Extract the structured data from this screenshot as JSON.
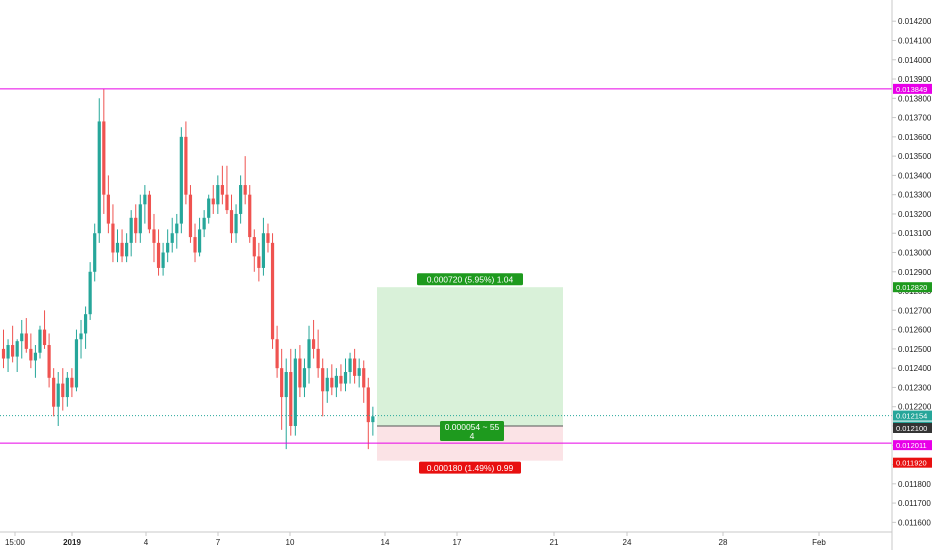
{
  "chart_data": {
    "type": "candlestick",
    "title": "",
    "xlabel": "",
    "ylabel": "",
    "ylim": [
      0.01155,
      0.01431
    ],
    "x_ticks": [
      "15:00",
      "2019",
      "4",
      "7",
      "10",
      "14",
      "17",
      "21",
      "24",
      "28",
      "Feb"
    ],
    "y_ticks": [
      "0.011600",
      "0.011700",
      "0.011800",
      "0.011900",
      "0.012000",
      "0.012100",
      "0.012200",
      "0.012300",
      "0.012400",
      "0.012500",
      "0.012600",
      "0.012700",
      "0.012800",
      "0.012900",
      "0.013000",
      "0.013100",
      "0.013200",
      "0.013300",
      "0.013400",
      "0.013500",
      "0.013600",
      "0.013700",
      "0.013800",
      "0.013900",
      "0.014000",
      "0.014100",
      "0.014200"
    ],
    "candles": [
      {
        "o": 0.0125,
        "h": 0.0126,
        "l": 0.0124,
        "c": 0.01245
      },
      {
        "o": 0.01245,
        "h": 0.01255,
        "l": 0.01238,
        "c": 0.01252
      },
      {
        "o": 0.01252,
        "h": 0.01262,
        "l": 0.01243,
        "c": 0.01246
      },
      {
        "o": 0.01246,
        "h": 0.01255,
        "l": 0.01238,
        "c": 0.01254
      },
      {
        "o": 0.01254,
        "h": 0.01265,
        "l": 0.01245,
        "c": 0.01258
      },
      {
        "o": 0.01258,
        "h": 0.01266,
        "l": 0.01248,
        "c": 0.0125
      },
      {
        "o": 0.0125,
        "h": 0.01258,
        "l": 0.0124,
        "c": 0.01244
      },
      {
        "o": 0.01244,
        "h": 0.01252,
        "l": 0.01235,
        "c": 0.01248
      },
      {
        "o": 0.01248,
        "h": 0.01262,
        "l": 0.01245,
        "c": 0.0126
      },
      {
        "o": 0.0126,
        "h": 0.0127,
        "l": 0.0125,
        "c": 0.01252
      },
      {
        "o": 0.01252,
        "h": 0.01258,
        "l": 0.0123,
        "c": 0.01235
      },
      {
        "o": 0.01235,
        "h": 0.0124,
        "l": 0.01215,
        "c": 0.0122
      },
      {
        "o": 0.0122,
        "h": 0.01238,
        "l": 0.0121,
        "c": 0.01232
      },
      {
        "o": 0.01232,
        "h": 0.0124,
        "l": 0.01218,
        "c": 0.01225
      },
      {
        "o": 0.01225,
        "h": 0.01238,
        "l": 0.0122,
        "c": 0.01235
      },
      {
        "o": 0.01235,
        "h": 0.0124,
        "l": 0.01225,
        "c": 0.0123
      },
      {
        "o": 0.0123,
        "h": 0.0126,
        "l": 0.01228,
        "c": 0.01255
      },
      {
        "o": 0.01255,
        "h": 0.01265,
        "l": 0.01245,
        "c": 0.01258
      },
      {
        "o": 0.01258,
        "h": 0.01272,
        "l": 0.0125,
        "c": 0.01268
      },
      {
        "o": 0.01268,
        "h": 0.01295,
        "l": 0.01265,
        "c": 0.0129
      },
      {
        "o": 0.0129,
        "h": 0.01315,
        "l": 0.01285,
        "c": 0.0131
      },
      {
        "o": 0.0131,
        "h": 0.0138,
        "l": 0.01305,
        "c": 0.01368
      },
      {
        "o": 0.01368,
        "h": 0.01385,
        "l": 0.0132,
        "c": 0.0133
      },
      {
        "o": 0.0133,
        "h": 0.0134,
        "l": 0.0131,
        "c": 0.01315
      },
      {
        "o": 0.01315,
        "h": 0.01325,
        "l": 0.01295,
        "c": 0.013
      },
      {
        "o": 0.013,
        "h": 0.01312,
        "l": 0.01295,
        "c": 0.01305
      },
      {
        "o": 0.01305,
        "h": 0.01312,
        "l": 0.01295,
        "c": 0.01298
      },
      {
        "o": 0.01298,
        "h": 0.0131,
        "l": 0.01295,
        "c": 0.01305
      },
      {
        "o": 0.01305,
        "h": 0.01322,
        "l": 0.01298,
        "c": 0.01318
      },
      {
        "o": 0.01318,
        "h": 0.01325,
        "l": 0.01305,
        "c": 0.0131
      },
      {
        "o": 0.0131,
        "h": 0.0133,
        "l": 0.01305,
        "c": 0.01325
      },
      {
        "o": 0.01325,
        "h": 0.01335,
        "l": 0.01315,
        "c": 0.0133
      },
      {
        "o": 0.0133,
        "h": 0.01332,
        "l": 0.0131,
        "c": 0.01312
      },
      {
        "o": 0.01312,
        "h": 0.0132,
        "l": 0.01295,
        "c": 0.01305
      },
      {
        "o": 0.01305,
        "h": 0.01312,
        "l": 0.01288,
        "c": 0.01292
      },
      {
        "o": 0.01292,
        "h": 0.01305,
        "l": 0.01288,
        "c": 0.013
      },
      {
        "o": 0.013,
        "h": 0.01312,
        "l": 0.01295,
        "c": 0.01305
      },
      {
        "o": 0.01305,
        "h": 0.01318,
        "l": 0.013,
        "c": 0.0131
      },
      {
        "o": 0.0131,
        "h": 0.0132,
        "l": 0.01302,
        "c": 0.01315
      },
      {
        "o": 0.01315,
        "h": 0.01365,
        "l": 0.0131,
        "c": 0.0136
      },
      {
        "o": 0.0136,
        "h": 0.01368,
        "l": 0.01325,
        "c": 0.0133
      },
      {
        "o": 0.0133,
        "h": 0.01335,
        "l": 0.01305,
        "c": 0.01308
      },
      {
        "o": 0.01308,
        "h": 0.01315,
        "l": 0.01295,
        "c": 0.013
      },
      {
        "o": 0.013,
        "h": 0.01318,
        "l": 0.01298,
        "c": 0.01312
      },
      {
        "o": 0.01312,
        "h": 0.01322,
        "l": 0.01308,
        "c": 0.01318
      },
      {
        "o": 0.01318,
        "h": 0.0133,
        "l": 0.01315,
        "c": 0.01328
      },
      {
        "o": 0.01328,
        "h": 0.01335,
        "l": 0.0132,
        "c": 0.01325
      },
      {
        "o": 0.01325,
        "h": 0.0134,
        "l": 0.0132,
        "c": 0.01335
      },
      {
        "o": 0.01335,
        "h": 0.01345,
        "l": 0.01325,
        "c": 0.0133
      },
      {
        "o": 0.0133,
        "h": 0.01345,
        "l": 0.0132,
        "c": 0.01322
      },
      {
        "o": 0.01322,
        "h": 0.0133,
        "l": 0.01305,
        "c": 0.0131
      },
      {
        "o": 0.0131,
        "h": 0.01325,
        "l": 0.01305,
        "c": 0.0132
      },
      {
        "o": 0.0132,
        "h": 0.0134,
        "l": 0.01315,
        "c": 0.01335
      },
      {
        "o": 0.01335,
        "h": 0.0135,
        "l": 0.01325,
        "c": 0.0133
      },
      {
        "o": 0.0133,
        "h": 0.01335,
        "l": 0.01305,
        "c": 0.01308
      },
      {
        "o": 0.01308,
        "h": 0.01312,
        "l": 0.0129,
        "c": 0.01298
      },
      {
        "o": 0.01298,
        "h": 0.01305,
        "l": 0.01285,
        "c": 0.01292
      },
      {
        "o": 0.01292,
        "h": 0.01318,
        "l": 0.01288,
        "c": 0.0131
      },
      {
        "o": 0.0131,
        "h": 0.01315,
        "l": 0.013,
        "c": 0.01305
      },
      {
        "o": 0.01305,
        "h": 0.0131,
        "l": 0.0125,
        "c": 0.01255
      },
      {
        "o": 0.01255,
        "h": 0.01262,
        "l": 0.01235,
        "c": 0.0124
      },
      {
        "o": 0.0124,
        "h": 0.0125,
        "l": 0.01208,
        "c": 0.01225
      },
      {
        "o": 0.01225,
        "h": 0.01245,
        "l": 0.01198,
        "c": 0.01238
      },
      {
        "o": 0.01238,
        "h": 0.0125,
        "l": 0.01205,
        "c": 0.0121
      },
      {
        "o": 0.0121,
        "h": 0.0125,
        "l": 0.01205,
        "c": 0.01245
      },
      {
        "o": 0.01245,
        "h": 0.01252,
        "l": 0.01225,
        "c": 0.0123
      },
      {
        "o": 0.0123,
        "h": 0.01245,
        "l": 0.01225,
        "c": 0.0124
      },
      {
        "o": 0.0124,
        "h": 0.01262,
        "l": 0.01232,
        "c": 0.01255
      },
      {
        "o": 0.01255,
        "h": 0.01265,
        "l": 0.01245,
        "c": 0.0125
      },
      {
        "o": 0.0125,
        "h": 0.0126,
        "l": 0.01235,
        "c": 0.0124
      },
      {
        "o": 0.0124,
        "h": 0.01245,
        "l": 0.01215,
        "c": 0.01228
      },
      {
        "o": 0.01228,
        "h": 0.0124,
        "l": 0.01222,
        "c": 0.01235
      },
      {
        "o": 0.01235,
        "h": 0.01242,
        "l": 0.01226,
        "c": 0.0123
      },
      {
        "o": 0.0123,
        "h": 0.0124,
        "l": 0.01225,
        "c": 0.01236
      },
      {
        "o": 0.01236,
        "h": 0.01242,
        "l": 0.01228,
        "c": 0.01232
      },
      {
        "o": 0.01232,
        "h": 0.01245,
        "l": 0.01228,
        "c": 0.01238
      },
      {
        "o": 0.01238,
        "h": 0.01248,
        "l": 0.01232,
        "c": 0.01245
      },
      {
        "o": 0.01245,
        "h": 0.0125,
        "l": 0.01232,
        "c": 0.01236
      },
      {
        "o": 0.01236,
        "h": 0.01245,
        "l": 0.0123,
        "c": 0.0124
      },
      {
        "o": 0.0124,
        "h": 0.01244,
        "l": 0.01222,
        "c": 0.0123
      },
      {
        "o": 0.0123,
        "h": 0.01235,
        "l": 0.01198,
        "c": 0.01212
      },
      {
        "o": 0.01212,
        "h": 0.0122,
        "l": 0.01205,
        "c": 0.01215
      }
    ],
    "horizontal_lines": [
      {
        "value": 0.013849,
        "label": "0.013849",
        "color": "#e800e8"
      },
      {
        "value": 0.012011,
        "label": "0.012011",
        "color": "#e800e8"
      }
    ],
    "current_price": {
      "value": 0.012154,
      "label": "0.012154",
      "countdown": "03:51:19",
      "color": "#26a69a"
    },
    "crosshair_price": {
      "value": 0.0121,
      "label": "0.012100"
    },
    "position": {
      "entry": 0.0121,
      "target": 0.01282,
      "stop": 0.01192,
      "target_label": "0.012820",
      "stop_label": "0.011920",
      "profit_text": "0.000720 (5.95%) 1.04",
      "loss_text": "0.000180 (1.49%) 0.99",
      "center_text_line1": "0.000054 ~ 55",
      "center_text_line2": "4"
    },
    "grid": false,
    "legend": "none"
  },
  "colors": {
    "up": "#26a69a",
    "down": "#ef5350",
    "profit_fill": "#d9f1d9",
    "loss_fill": "#fbe3e6",
    "profit_label": "#1e9a1e",
    "loss_label": "#e81010",
    "axis_text": "#222222",
    "axis_line": "#c8c8c8"
  }
}
